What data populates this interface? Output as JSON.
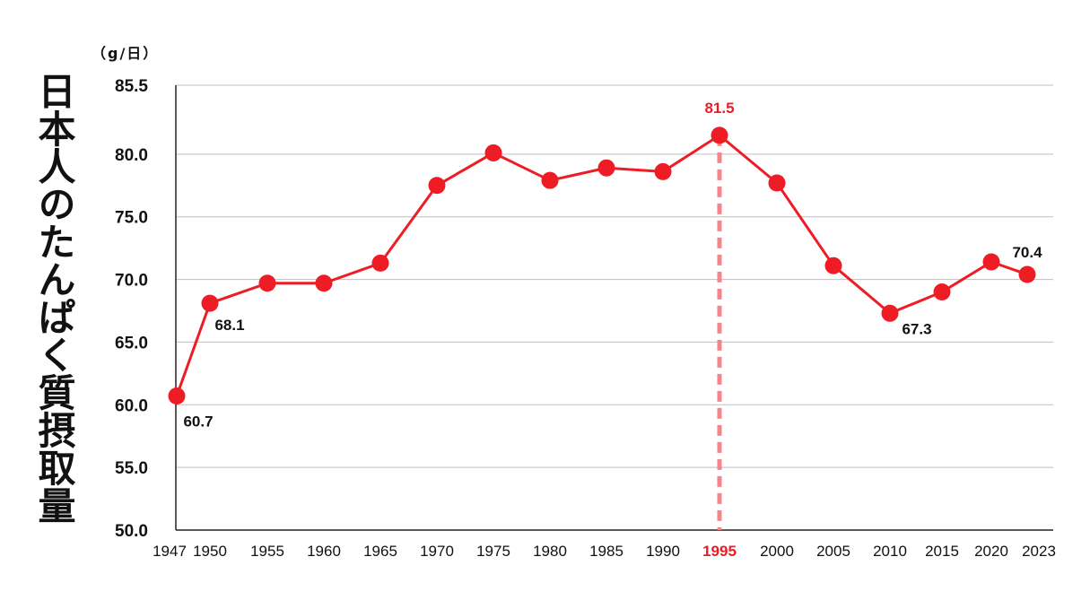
{
  "colors": {
    "series": "#ee1c25",
    "highlight": "#f3868c",
    "grid": "#bfbfbf",
    "axis": "#222222",
    "text": "#111111"
  },
  "chart_data": {
    "type": "line",
    "title": "日本人のたんぱく質摂取量",
    "unit": "（g/日）",
    "ylim": [
      50.0,
      85.5
    ],
    "yticks": [
      50.0,
      55.0,
      60.0,
      65.0,
      70.0,
      75.0,
      80.0,
      85.5
    ],
    "ytick_labels": [
      "50.0",
      "55.0",
      "60.0",
      "65.0",
      "70.0",
      "75.0",
      "80.0",
      "85.5"
    ],
    "xtick_labels": [
      "1947",
      "1950",
      "1955",
      "1960",
      "1965",
      "1970",
      "1975",
      "1980",
      "1985",
      "1990",
      "1995",
      "2000",
      "2005",
      "2010",
      "2015",
      "2020",
      "2023"
    ],
    "x": [
      1947,
      1950,
      1955,
      1960,
      1965,
      1970,
      1975,
      1980,
      1985,
      1990,
      1995,
      2000,
      2005,
      2010,
      2015,
      2020,
      2023
    ],
    "values": [
      60.7,
      68.1,
      69.7,
      69.7,
      71.3,
      77.5,
      80.1,
      77.9,
      78.9,
      78.6,
      81.5,
      77.7,
      71.1,
      67.3,
      69.0,
      71.4,
      70.4
    ],
    "grid": true,
    "legend": "none",
    "highlight": {
      "x": 1995,
      "label": "1995"
    },
    "data_labels": [
      {
        "index": 0,
        "text": "60.7"
      },
      {
        "index": 1,
        "text": "68.1"
      },
      {
        "index": 10,
        "text": "81.5"
      },
      {
        "index": 13,
        "text": "67.3"
      },
      {
        "index": 16,
        "text": "70.4"
      }
    ]
  }
}
